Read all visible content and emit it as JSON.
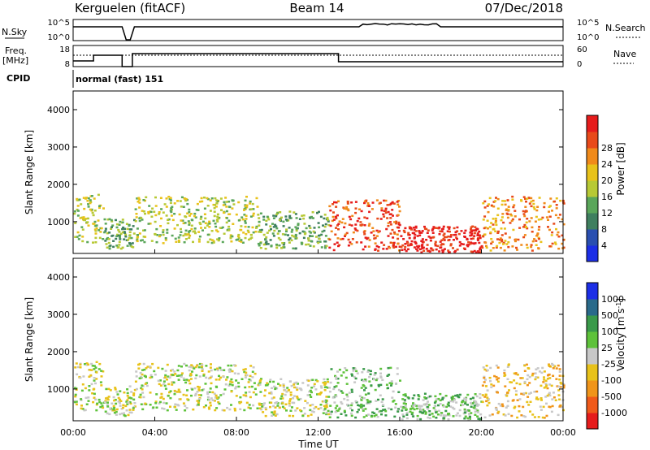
{
  "header": {
    "station": "Kerguelen (fitACF)",
    "beam": "Beam 14",
    "date": "07/Dec/2018"
  },
  "side_labels": {
    "nsky": "N.Sky",
    "nsearch": "N.Search",
    "freq": "Freq.",
    "freq_unit": "[MHz]",
    "nave": "Nave",
    "cpid": "CPID",
    "cpid_value": "normal (fast) 151"
  },
  "noise_panel": {
    "left_ticks": [
      "10^5",
      "10^0"
    ],
    "right_ticks": [
      "10^5",
      "10^0"
    ]
  },
  "freq_panel": {
    "left_ticks": [
      "18",
      "8"
    ],
    "right_ticks": [
      "60",
      "0"
    ]
  },
  "colors": {
    "power": [
      "#1c2ee6",
      "#2a4fb0",
      "#3f7f5f",
      "#5aa65a",
      "#b7c935",
      "#e8c21a",
      "#f08a1a",
      "#e84a1a",
      "#e61c1c"
    ],
    "velocity": [
      "#e61c1c",
      "#f05a1a",
      "#f0951a",
      "#e8c21a",
      "#c8c8c8",
      "#5ec23a",
      "#3a9a4a",
      "#2a6a8a",
      "#1c2ee6"
    ]
  },
  "chart_data": [
    {
      "type": "heatmap",
      "title": "",
      "xlabel": "Time UT",
      "ylabel": "Slant Range [km]",
      "x_ticks": [
        "00:00",
        "04:00",
        "08:00",
        "12:00",
        "16:00",
        "20:00",
        "00:00"
      ],
      "y_ticks": [
        "1000",
        "2000",
        "3000",
        "4000"
      ],
      "ylim": [
        150,
        4500
      ],
      "colorbar_label": "Power [dB]",
      "colorbar_ticks": [
        "4",
        "8",
        "12",
        "16",
        "20",
        "24",
        "28"
      ],
      "scatter_regions": [
        {
          "t0": 0.0,
          "t1": 1.5,
          "r0": 450,
          "r1": 1750,
          "level": 4
        },
        {
          "t0": 1.5,
          "t1": 3.0,
          "r0": 300,
          "r1": 1100,
          "level": 3
        },
        {
          "t0": 3.0,
          "t1": 9.0,
          "r0": 450,
          "r1": 1700,
          "level": 4
        },
        {
          "t0": 9.0,
          "t1": 12.5,
          "r0": 300,
          "r1": 1300,
          "level": 3
        },
        {
          "t0": 12.5,
          "t1": 16.0,
          "r0": 250,
          "r1": 1600,
          "level": 7
        },
        {
          "t0": 16.0,
          "t1": 20.0,
          "r0": 200,
          "r1": 900,
          "level": 8
        },
        {
          "t0": 20.0,
          "t1": 24.0,
          "r0": 250,
          "r1": 1700,
          "level": 6
        }
      ]
    },
    {
      "type": "heatmap",
      "title": "",
      "xlabel": "Time UT",
      "ylabel": "Slant Range [km]",
      "x_ticks": [
        "00:00",
        "04:00",
        "08:00",
        "12:00",
        "16:00",
        "20:00",
        "00:00"
      ],
      "y_ticks": [
        "1000",
        "2000",
        "3000",
        "4000"
      ],
      "ylim": [
        150,
        4500
      ],
      "colorbar_label": "Velocity [m s^-1]",
      "colorbar_ticks": [
        "1000",
        "500",
        "100",
        "25",
        "-25",
        "-100",
        "-500",
        "-1000"
      ],
      "scatter_regions": [
        {
          "t0": 0.0,
          "t1": 1.5,
          "r0": 450,
          "r1": 1750,
          "level": 4
        },
        {
          "t0": 1.5,
          "t1": 3.0,
          "r0": 300,
          "r1": 1100,
          "level": 4
        },
        {
          "t0": 3.0,
          "t1": 9.0,
          "r0": 450,
          "r1": 1700,
          "level": 4
        },
        {
          "t0": 9.0,
          "t1": 12.5,
          "r0": 300,
          "r1": 1300,
          "level": 4
        },
        {
          "t0": 12.5,
          "t1": 16.0,
          "r0": 250,
          "r1": 1600,
          "level": 5
        },
        {
          "t0": 16.0,
          "t1": 20.0,
          "r0": 200,
          "r1": 900,
          "level": 5
        },
        {
          "t0": 20.0,
          "t1": 24.0,
          "r0": 250,
          "r1": 1700,
          "level": 3
        }
      ]
    }
  ]
}
